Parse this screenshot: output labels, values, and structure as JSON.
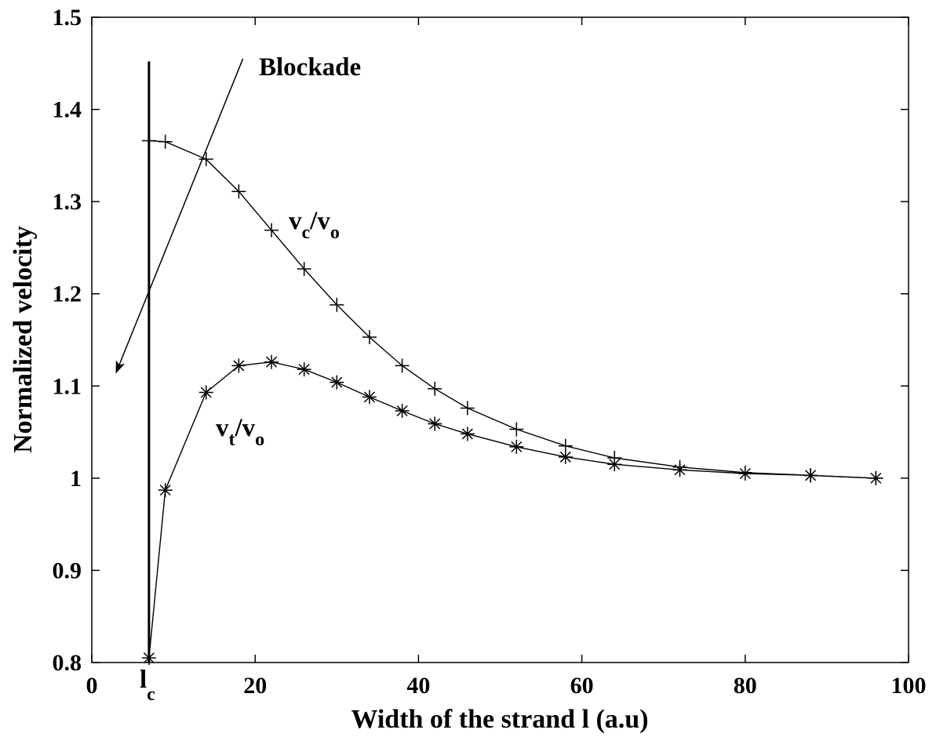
{
  "chart_data": {
    "type": "line",
    "xlabel": "Width of the strand l (a.u)",
    "ylabel": "Normalized velocity",
    "xlim": [
      0,
      100
    ],
    "ylim": [
      0.8,
      1.5
    ],
    "xticks": [
      "0",
      "20",
      "40",
      "60",
      "80",
      "100"
    ],
    "yticks": [
      "0.8",
      "0.9",
      "1",
      "1.1",
      "1.2",
      "1.3",
      "1.4",
      "1.5"
    ],
    "grid": false,
    "series": [
      {
        "marker": "plus",
        "label_main": "v",
        "label_sub1": "c",
        "label_mid": "/v",
        "label_sub2": "o",
        "x": [
          7,
          9,
          14,
          18,
          22,
          26,
          30,
          34,
          38,
          42,
          46,
          52,
          58,
          64,
          72,
          80,
          88,
          96
        ],
        "y": [
          1.366,
          1.365,
          1.346,
          1.311,
          1.269,
          1.227,
          1.188,
          1.153,
          1.122,
          1.097,
          1.076,
          1.053,
          1.035,
          1.022,
          1.012,
          1.006,
          1.003,
          1.0
        ]
      },
      {
        "marker": "asterisk",
        "label_main": "v",
        "label_sub1": "t",
        "label_mid": "/v",
        "label_sub2": "o",
        "x": [
          7,
          9,
          14,
          18,
          22,
          26,
          30,
          34,
          38,
          42,
          46,
          52,
          58,
          64,
          72,
          80,
          88,
          96
        ],
        "y": [
          0.805,
          0.987,
          1.093,
          1.122,
          1.126,
          1.118,
          1.104,
          1.088,
          1.073,
          1.059,
          1.048,
          1.034,
          1.023,
          1.015,
          1.009,
          1.005,
          1.003,
          1.0
        ]
      }
    ],
    "threshold_line": {
      "x": 7,
      "label_main": "l",
      "label_sub": "c"
    },
    "annotation": {
      "text": "Blockade",
      "arrow_from": [
        18.5,
        1.455
      ],
      "arrow_to": [
        3,
        1.115
      ]
    }
  }
}
